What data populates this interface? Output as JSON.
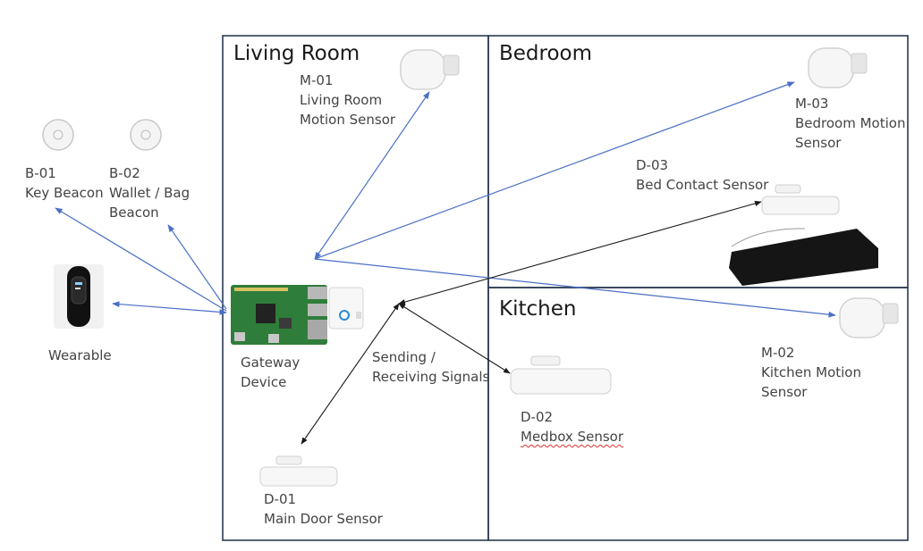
{
  "rooms": {
    "living_room": "Living Room",
    "bedroom": "Bedroom",
    "kitchen": "Kitchen"
  },
  "beacons": {
    "b01": {
      "id": "B-01",
      "name": "Key Beacon"
    },
    "b02": {
      "id": "B-02",
      "line1": "Wallet / Bag",
      "line2": "Beacon"
    }
  },
  "wearable": {
    "label": "Wearable"
  },
  "gateway": {
    "line1": "Gateway",
    "line2": "Device"
  },
  "signals": {
    "line1": "Sending /",
    "line2": "Receiving Signals"
  },
  "sensors": {
    "m01": {
      "id": "M-01",
      "line1": "Living Room",
      "line2": "Motion Sensor"
    },
    "m02": {
      "id": "M-02",
      "line1": "Kitchen Motion",
      "line2": "Sensor"
    },
    "m03": {
      "id": "M-03",
      "line1": "Bedroom Motion",
      "line2": "Sensor"
    },
    "d01": {
      "id": "D-01",
      "name": "Main Door Sensor"
    },
    "d02": {
      "id": "D-02",
      "name": "Medbox Sensor"
    },
    "d03": {
      "id": "D-03",
      "name": "Bed Contact Sensor"
    }
  },
  "colors": {
    "wireless_arrow": "#4a6fc4",
    "signal_arrow": "#1a1a1a",
    "room_border": "#2b3a52",
    "board_green": "#2f7d3a"
  }
}
